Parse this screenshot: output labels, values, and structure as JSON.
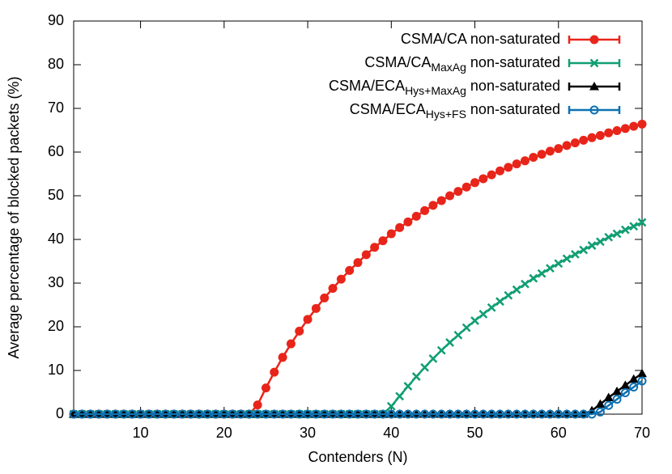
{
  "chart_data": {
    "type": "line",
    "xlabel": "Contenders (N)",
    "ylabel": "Average percentage of blocked packets (%)",
    "x": [
      2,
      3,
      4,
      5,
      6,
      7,
      8,
      9,
      10,
      11,
      12,
      13,
      14,
      15,
      16,
      17,
      18,
      19,
      20,
      21,
      22,
      23,
      24,
      25,
      26,
      27,
      28,
      29,
      30,
      31,
      32,
      33,
      34,
      35,
      36,
      37,
      38,
      39,
      40,
      41,
      42,
      43,
      44,
      45,
      46,
      47,
      48,
      49,
      50,
      51,
      52,
      53,
      54,
      55,
      56,
      57,
      58,
      59,
      60,
      61,
      62,
      63,
      64,
      65,
      66,
      67,
      68,
      69,
      70
    ],
    "xlim": [
      2,
      70
    ],
    "xticks": [
      10,
      20,
      30,
      40,
      50,
      60,
      70
    ],
    "ylim": [
      0,
      90
    ],
    "yticks": [
      0,
      10,
      20,
      30,
      40,
      50,
      60,
      70,
      80,
      90
    ],
    "legend": "upper right",
    "series": [
      {
        "name": "CSMA/CA",
        "suffix": " non-saturated",
        "color": "#e8251a",
        "marker": "filled-circle",
        "values": [
          0,
          0,
          0,
          0,
          0,
          0,
          0,
          0,
          0,
          0,
          0,
          0,
          0,
          0,
          0,
          0,
          0,
          0,
          0,
          0,
          0,
          0,
          2.1,
          6.0,
          9.6,
          13.0,
          16.1,
          19.0,
          21.7,
          24.2,
          26.6,
          28.8,
          30.9,
          32.9,
          34.7,
          36.5,
          38.2,
          39.7,
          41.3,
          42.7,
          44.0,
          45.3,
          46.6,
          47.8,
          48.9,
          50.0,
          51.0,
          52.0,
          53.0,
          53.9,
          54.8,
          55.7,
          56.5,
          57.3,
          58.0,
          58.8,
          59.5,
          60.2,
          60.8,
          61.5,
          62.1,
          62.7,
          63.3,
          63.8,
          64.4,
          64.9,
          65.4,
          65.9,
          66.4
        ]
      },
      {
        "name": "CSMA/CA",
        "subscript": "MaxAg",
        "suffix": " non-saturated",
        "color": "#119e73",
        "marker": "cross",
        "values": [
          0,
          0,
          0,
          0,
          0,
          0,
          0,
          0,
          0,
          0,
          0,
          0,
          0,
          0,
          0,
          0,
          0,
          0,
          0,
          0,
          0,
          0,
          0,
          0,
          0,
          0,
          0,
          0,
          0,
          0,
          0,
          0,
          0,
          0,
          0,
          0,
          0,
          0,
          1.8,
          4.1,
          6.4,
          8.6,
          10.7,
          12.7,
          14.6,
          16.4,
          18.1,
          19.8,
          21.4,
          22.9,
          24.4,
          25.8,
          27.2,
          28.5,
          29.8,
          31.1,
          32.2,
          33.4,
          34.5,
          35.6,
          36.6,
          37.6,
          38.6,
          39.5,
          40.5,
          41.3,
          42.2,
          43.0,
          43.9
        ]
      },
      {
        "name": "CSMA/ECA",
        "subscript": "Hys+MaxAg",
        "suffix": " non-saturated",
        "color": "#000000",
        "marker": "filled-triangle",
        "values": [
          0,
          0,
          0,
          0,
          0,
          0,
          0,
          0,
          0,
          0,
          0,
          0,
          0,
          0,
          0,
          0,
          0,
          0,
          0,
          0,
          0,
          0,
          0,
          0,
          0,
          0,
          0,
          0,
          0,
          0,
          0,
          0,
          0,
          0,
          0,
          0,
          0,
          0,
          0,
          0,
          0,
          0,
          0,
          0,
          0,
          0,
          0,
          0,
          0,
          0,
          0,
          0,
          0,
          0,
          0,
          0,
          0,
          0,
          0,
          0,
          0,
          0,
          0.8,
          2.3,
          3.8,
          5.2,
          6.6,
          8.0,
          9.3
        ]
      },
      {
        "name": "CSMA/ECA",
        "subscript": "Hys+FS",
        "suffix": " non-saturated",
        "color": "#0d72b2",
        "marker": "open-circle",
        "values": [
          0,
          0,
          0,
          0,
          0,
          0,
          0,
          0,
          0,
          0,
          0,
          0,
          0,
          0,
          0,
          0,
          0,
          0,
          0,
          0,
          0,
          0,
          0,
          0,
          0,
          0,
          0,
          0,
          0,
          0,
          0,
          0,
          0,
          0,
          0,
          0,
          0,
          0,
          0,
          0,
          0,
          0,
          0,
          0,
          0,
          0,
          0,
          0,
          0,
          0,
          0,
          0,
          0,
          0,
          0,
          0,
          0,
          0,
          0,
          0,
          0,
          0,
          0,
          0.5,
          2.0,
          3.4,
          4.9,
          6.2,
          7.6
        ]
      }
    ]
  }
}
